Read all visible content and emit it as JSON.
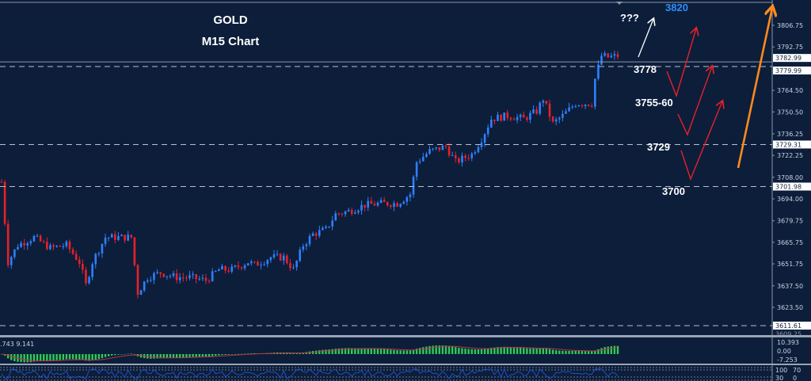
{
  "chart_data": {
    "type": "candlestick",
    "title": "GOLD",
    "subtitle": "M15 Chart",
    "ylim": [
      3605,
      3816
    ],
    "y_ticks": [
      "3806.75",
      "3792.75",
      "3764.50",
      "3750.50",
      "3736.25",
      "3722.25",
      "3708.00",
      "3694.00",
      "3679.75",
      "3665.75",
      "3651.75",
      "3637.50",
      "3623.50"
    ],
    "price_close_path": [
      [
        0,
        3705
      ],
      [
        2,
        3653
      ],
      [
        5,
        3664
      ],
      [
        10,
        3669
      ],
      [
        15,
        3662
      ],
      [
        20,
        3664
      ],
      [
        24,
        3653
      ],
      [
        26,
        3638
      ],
      [
        28,
        3653
      ],
      [
        32,
        3669
      ],
      [
        37,
        3669
      ],
      [
        40,
        3669
      ],
      [
        42,
        3633
      ],
      [
        45,
        3643
      ],
      [
        49,
        3646
      ],
      [
        54,
        3643
      ],
      [
        58,
        3643
      ],
      [
        63,
        3641
      ],
      [
        67,
        3648
      ],
      [
        71,
        3648
      ],
      [
        76,
        3653
      ],
      [
        78,
        3651
      ],
      [
        83,
        3656
      ],
      [
        87,
        3656
      ],
      [
        90,
        3648
      ],
      [
        93,
        3664
      ],
      [
        96,
        3671
      ],
      [
        100,
        3674
      ],
      [
        103,
        3684
      ],
      [
        107,
        3686
      ],
      [
        112,
        3690
      ],
      [
        117,
        3691
      ],
      [
        122,
        3691
      ],
      [
        126,
        3697
      ],
      [
        128,
        3718
      ],
      [
        132,
        3725
      ],
      [
        137,
        3728
      ],
      [
        140,
        3718
      ],
      [
        145,
        3723
      ],
      [
        148,
        3733
      ],
      [
        151,
        3746
      ],
      [
        156,
        3748
      ],
      [
        161,
        3746
      ],
      [
        165,
        3751
      ],
      [
        167,
        3759
      ],
      [
        170,
        3743
      ],
      [
        173,
        3748
      ],
      [
        177,
        3756
      ],
      [
        182,
        3756
      ],
      [
        183,
        3772
      ],
      [
        185,
        3787
      ],
      [
        187,
        3786
      ],
      [
        190,
        3787
      ]
    ],
    "horizontal_levels": [
      {
        "price": "3782.99",
        "style": "solid",
        "color": "#8b96a8"
      },
      {
        "price": "3779.99",
        "style": "dashed",
        "color": "#b8c0cc"
      },
      {
        "price": "3729.31",
        "style": "dashed",
        "color": "#b8c0cc"
      },
      {
        "price": "3701.98",
        "style": "dashed",
        "color": "#b8c0cc"
      },
      {
        "price": "3611.61",
        "style": "dashed",
        "color": "#b8c0cc"
      }
    ],
    "hidden_axis_label": "3609.25",
    "annotations": [
      {
        "text": "???",
        "color": "#ffffff"
      },
      {
        "text": "3820",
        "color": "#2f8fff"
      },
      {
        "text": "3778",
        "color": "#ffffff"
      },
      {
        "text": "3755-60",
        "color": "#ffffff"
      },
      {
        "text": "3729",
        "color": "#ffffff"
      },
      {
        "text": "3700",
        "color": "#ffffff"
      }
    ],
    "colors": {
      "bull": "#2f7fff",
      "bear": "#e8202a",
      "background": "#0c1e3a",
      "histogram": "#2ecc55",
      "signal": "#c0304a",
      "arrow_main": "#ff8a1c",
      "arrow_scenario": "#e8202a",
      "arrow_white": "#ffffff",
      "rsi_line": "#2050c8"
    },
    "indicator1": {
      "label": ".743 9.141",
      "ticks": [
        "10.393",
        "0.00",
        "-7.253"
      ]
    },
    "indicator2": {
      "ticks": [
        "100",
        "70",
        "30",
        "0"
      ]
    }
  }
}
